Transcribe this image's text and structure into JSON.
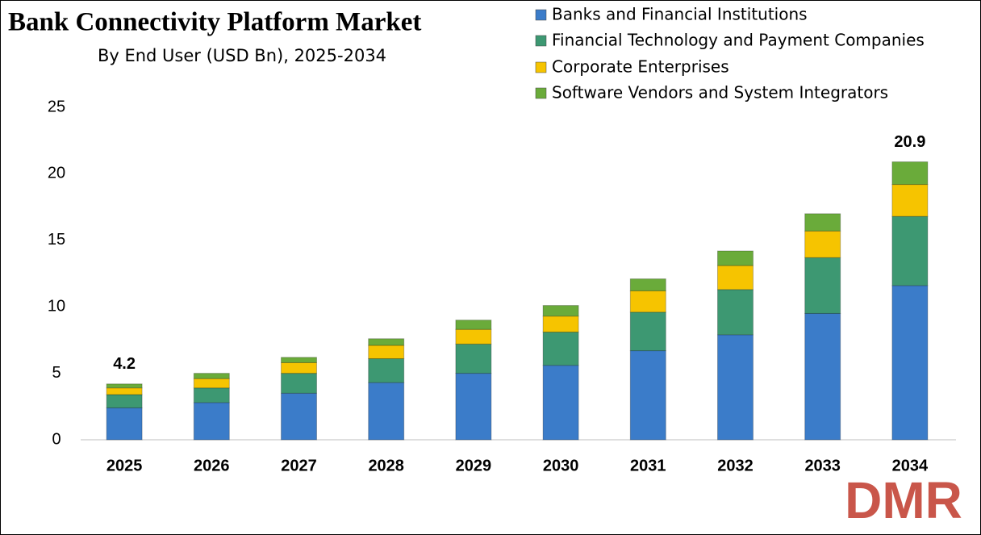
{
  "chart_data": {
    "type": "stacked_bar",
    "title": "Bank Connectivity Platform Market",
    "subtitle": "By End User (USD Bn), 2025-2034",
    "categories": [
      "2025",
      "2026",
      "2027",
      "2028",
      "2029",
      "2030",
      "2031",
      "2032",
      "2033",
      "2034"
    ],
    "series": [
      {
        "name": "Banks and Financial Institutions",
        "color": "#3b7cc9",
        "values": [
          2.4,
          2.8,
          3.5,
          4.3,
          5.0,
          5.6,
          6.7,
          7.9,
          9.5,
          11.6
        ]
      },
      {
        "name": "Financial Technology and Payment Companies",
        "color": "#3d9872",
        "values": [
          1.0,
          1.1,
          1.5,
          1.8,
          2.2,
          2.5,
          2.9,
          3.4,
          4.2,
          5.2
        ]
      },
      {
        "name": "Corporate Enterprises",
        "color": "#f6c400",
        "values": [
          0.5,
          0.7,
          0.8,
          1.0,
          1.1,
          1.2,
          1.6,
          1.8,
          2.0,
          2.4
        ]
      },
      {
        "name": "Software Vendors and System Integrators",
        "color": "#6aab3a",
        "values": [
          0.3,
          0.4,
          0.4,
          0.5,
          0.7,
          0.8,
          0.9,
          1.1,
          1.3,
          1.7
        ]
      }
    ],
    "annotations": [
      {
        "text": "4.2",
        "category": "2025",
        "value": 4.2
      },
      {
        "text": "20.9",
        "category": "2034",
        "value": 20.9
      }
    ],
    "ylim": [
      0,
      25
    ],
    "yticks": [
      0,
      5,
      10,
      15,
      20,
      25
    ],
    "grid": false,
    "legend": "top-right",
    "logo": "DMR"
  }
}
